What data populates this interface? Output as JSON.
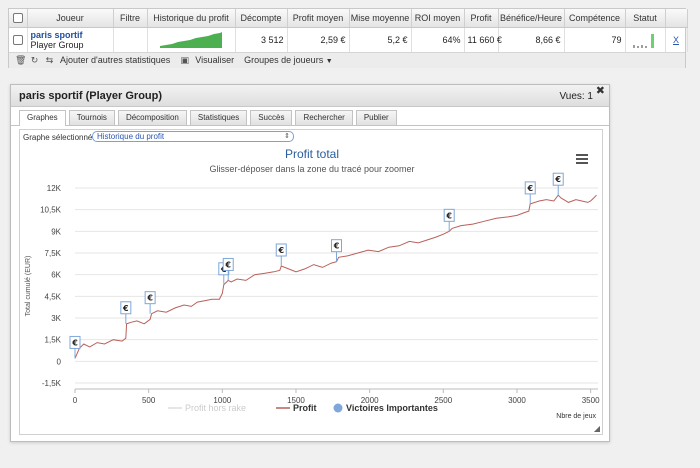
{
  "table": {
    "headers": [
      "",
      "Joueur",
      "Filtre",
      "Historique du profit",
      "Décompte",
      "Profit moyen",
      "Mise moyenne",
      "ROI moyen",
      "Profit",
      "Bénéfice/Heure",
      "Compétence",
      "Statut",
      ""
    ],
    "row": {
      "player_name": "paris sportif",
      "player_type": "Player Group",
      "filter": "",
      "count": "3 512",
      "avg_profit": "2,59 €",
      "avg_stake": "5,2 €",
      "avg_roi": "64%",
      "profit": "11 660 €",
      "profit_per_hour": "8,66 €",
      "competence": "79",
      "delete": "X"
    }
  },
  "toolbar": {
    "add_stats": "Ajouter d'autres statistiques",
    "visualize": "Visualiser",
    "groups": "Groupes de joueurs"
  },
  "dialog": {
    "title": "paris sportif (Player Group)",
    "views": "Vues: 1",
    "close": "✖",
    "tabs": [
      "Graphes",
      "Tournois",
      "Décomposition",
      "Statistiques",
      "Succès",
      "Rechercher",
      "Publier"
    ],
    "active_tab": 0,
    "select_label": "Graphe sélectionné :",
    "select_value": "Historique du profit"
  },
  "chart_data": {
    "type": "line",
    "title": "Profit total",
    "subtitle": "Glisser-déposer dans la zone du tracé pour zoomer",
    "ylabel": "Total cumulé (EUR)",
    "xlabel": "Nbre de jeux",
    "xlim": [
      0,
      3550
    ],
    "ylim": [
      -1500,
      12000
    ],
    "xticks": [
      0,
      500,
      1000,
      1500,
      2000,
      2500,
      3000,
      3500
    ],
    "yticks": [
      -1500,
      0,
      1500,
      3000,
      4500,
      6000,
      7500,
      9000,
      10500,
      12000
    ],
    "yticklabels": [
      "-1,5K",
      "0",
      "1,5K",
      "3K",
      "4,5K",
      "6K",
      "7,5K",
      "9K",
      "10,5K",
      "12K"
    ],
    "legend": [
      "Profit hors rake",
      "Profit",
      "Victoires Importantes"
    ],
    "legend_position": "bottom",
    "line_color": "#b9605a",
    "series": [
      {
        "name": "Profit",
        "x": [
          0,
          30,
          60,
          100,
          150,
          200,
          260,
          320,
          345,
          350,
          380,
          420,
          470,
          510,
          520,
          560,
          620,
          680,
          740,
          790,
          830,
          880,
          930,
          980,
          1000,
          1010,
          1030,
          1040,
          1060,
          1100,
          1160,
          1220,
          1290,
          1350,
          1390,
          1400,
          1450,
          1500,
          1560,
          1620,
          1680,
          1740,
          1775,
          1790,
          1850,
          1920,
          1990,
          2060,
          2130,
          2200,
          2270,
          2330,
          2390,
          2450,
          2500,
          2540,
          2560,
          2620,
          2700,
          2780,
          2860,
          2940,
          3000,
          3050,
          3080,
          3090,
          3150,
          3200,
          3250,
          3280,
          3300,
          3350,
          3400,
          3440,
          3480,
          3500,
          3520,
          3540
        ],
        "y": [
          200,
          900,
          1200,
          1000,
          1300,
          1200,
          1500,
          1400,
          1600,
          2600,
          2700,
          2800,
          2600,
          2900,
          3300,
          3500,
          3400,
          3700,
          3900,
          3800,
          4100,
          4200,
          4300,
          4300,
          4700,
          5300,
          5500,
          5600,
          5500,
          5700,
          5600,
          6000,
          6100,
          6200,
          6300,
          6600,
          6400,
          6200,
          6400,
          6700,
          6500,
          6800,
          6900,
          7200,
          7300,
          7500,
          7700,
          7600,
          7900,
          8000,
          8300,
          8200,
          8400,
          8600,
          8800,
          9000,
          9200,
          9400,
          9500,
          9700,
          9900,
          10000,
          10100,
          10300,
          10400,
          10900,
          11100,
          11200,
          11100,
          11500,
          11300,
          11000,
          11200,
          11100,
          11000,
          11100,
          11300,
          11500
        ]
      },
      {
        "name": "Victoires Importantes",
        "x": [
          0,
          345,
          510,
          1010,
          1040,
          1400,
          1775,
          2540,
          3090,
          3280
        ],
        "y": [
          200,
          2600,
          3300,
          5300,
          5600,
          6600,
          6900,
          9000,
          10900,
          11500
        ]
      }
    ]
  }
}
